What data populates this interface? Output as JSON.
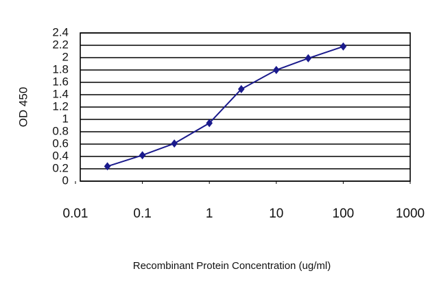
{
  "chart_data": {
    "type": "line",
    "x_label": "Recombinant Protein Concentration (ug/ml)",
    "y_label": "OD 450",
    "x": [
      0.03,
      0.1,
      0.3,
      1,
      3,
      10,
      30,
      100
    ],
    "series": [
      {
        "color": "#1a1a8c",
        "values": [
          0.24,
          0.42,
          0.61,
          0.94,
          1.49,
          1.8,
          1.99,
          2.18
        ]
      }
    ],
    "xscale": "log",
    "xlim": [
      0.01,
      1000
    ],
    "xticks": [
      0.01,
      0.1,
      1,
      10,
      100,
      1000
    ],
    "ylim": [
      0,
      2.4
    ],
    "yticks": [
      0,
      0.2,
      0.4,
      0.6,
      0.8,
      1,
      1.2,
      1.4,
      1.6,
      1.8,
      2,
      2.2,
      2.4
    ],
    "grid": true
  }
}
